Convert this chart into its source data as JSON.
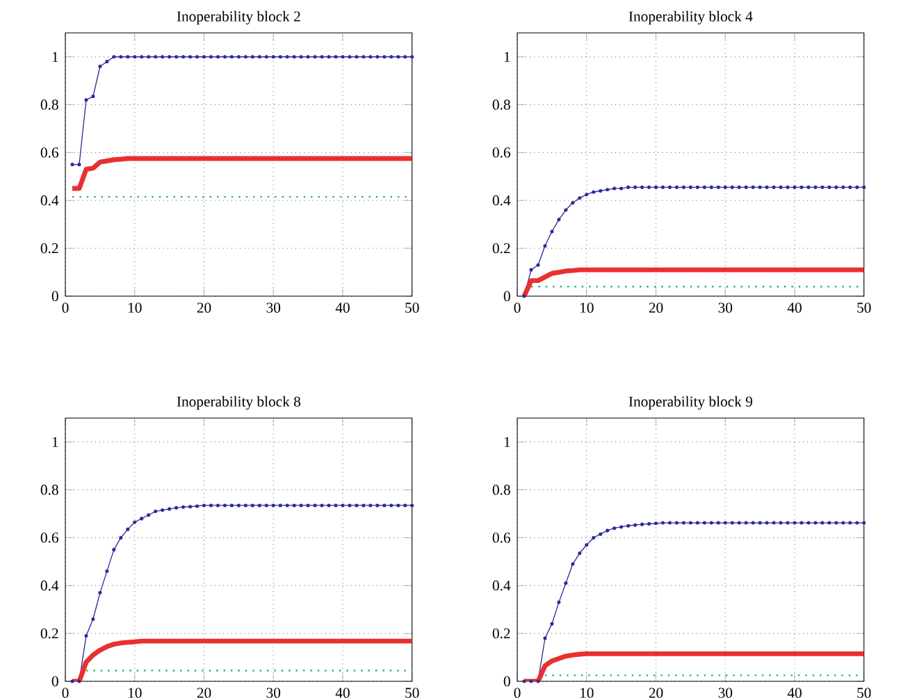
{
  "chart_data": [
    {
      "type": "line",
      "title": "Inoperability block 2",
      "xlim": [
        0,
        50
      ],
      "ylim": [
        0,
        1.1
      ],
      "xticks": [
        0,
        10,
        20,
        30,
        40,
        50
      ],
      "yticks": [
        0,
        0.2,
        0.4,
        0.6,
        0.8,
        1
      ],
      "grid": true,
      "x": [
        1,
        2,
        3,
        4,
        5,
        6,
        7,
        8,
        9,
        10,
        11,
        12,
        13,
        14,
        15,
        16,
        17,
        18,
        19,
        20,
        21,
        22,
        23,
        24,
        25,
        26,
        27,
        28,
        29,
        30,
        31,
        32,
        33,
        34,
        35,
        36,
        37,
        38,
        39,
        40,
        41,
        42,
        43,
        44,
        45,
        46,
        47,
        48,
        49,
        50
      ],
      "series": [
        {
          "color": "#2b2b9b",
          "marker": "circle",
          "line_style": "solid",
          "values": [
            0.55,
            0.55,
            0.82,
            0.835,
            0.96,
            0.98,
            1,
            1,
            1,
            1,
            1,
            1,
            1,
            1,
            1,
            1,
            1,
            1,
            1,
            1,
            1,
            1,
            1,
            1,
            1,
            1,
            1,
            1,
            1,
            1,
            1,
            1,
            1,
            1,
            1,
            1,
            1,
            1,
            1,
            1,
            1,
            1,
            1,
            1,
            1,
            1,
            1,
            1,
            1,
            1
          ]
        },
        {
          "color": "#e83030",
          "marker": "none",
          "line_style": "solid",
          "values": [
            0.45,
            0.45,
            0.53,
            0.535,
            0.56,
            0.565,
            0.57,
            0.572,
            0.575,
            0.575,
            0.575,
            0.575,
            0.575,
            0.575,
            0.575,
            0.575,
            0.575,
            0.575,
            0.575,
            0.575,
            0.575,
            0.575,
            0.575,
            0.575,
            0.575,
            0.575,
            0.575,
            0.575,
            0.575,
            0.575,
            0.575,
            0.575,
            0.575,
            0.575,
            0.575,
            0.575,
            0.575,
            0.575,
            0.575,
            0.575,
            0.575,
            0.575,
            0.575,
            0.575,
            0.575,
            0.575,
            0.575,
            0.575,
            0.575,
            0.575
          ]
        },
        {
          "color": "#22b070",
          "marker": "none",
          "line_style": "dotted",
          "values": [
            0.415,
            0.415,
            0.415,
            0.415,
            0.415,
            0.415,
            0.415,
            0.415,
            0.415,
            0.415,
            0.415,
            0.415,
            0.415,
            0.415,
            0.415,
            0.415,
            0.415,
            0.415,
            0.415,
            0.415,
            0.415,
            0.415,
            0.415,
            0.415,
            0.415,
            0.415,
            0.415,
            0.415,
            0.415,
            0.415,
            0.415,
            0.415,
            0.415,
            0.415,
            0.415,
            0.415,
            0.415,
            0.415,
            0.415,
            0.415,
            0.415,
            0.415,
            0.415,
            0.415,
            0.415,
            0.415,
            0.415,
            0.415,
            0.415,
            0.415
          ]
        }
      ]
    },
    {
      "type": "line",
      "title": "Inoperability block 4",
      "xlim": [
        0,
        50
      ],
      "ylim": [
        0,
        1.1
      ],
      "xticks": [
        0,
        10,
        20,
        30,
        40,
        50
      ],
      "yticks": [
        0,
        0.2,
        0.4,
        0.6,
        0.8,
        1
      ],
      "grid": true,
      "x": [
        1,
        2,
        3,
        4,
        5,
        6,
        7,
        8,
        9,
        10,
        11,
        12,
        13,
        14,
        15,
        16,
        17,
        18,
        19,
        20,
        21,
        22,
        23,
        24,
        25,
        26,
        27,
        28,
        29,
        30,
        31,
        32,
        33,
        34,
        35,
        36,
        37,
        38,
        39,
        40,
        41,
        42,
        43,
        44,
        45,
        46,
        47,
        48,
        49,
        50
      ],
      "series": [
        {
          "color": "#2b2b9b",
          "marker": "circle",
          "line_style": "solid",
          "values": [
            0,
            0.11,
            0.13,
            0.21,
            0.27,
            0.32,
            0.36,
            0.39,
            0.41,
            0.425,
            0.435,
            0.44,
            0.445,
            0.45,
            0.45,
            0.455,
            0.455,
            0.455,
            0.455,
            0.455,
            0.455,
            0.455,
            0.455,
            0.455,
            0.455,
            0.455,
            0.455,
            0.455,
            0.455,
            0.455,
            0.455,
            0.455,
            0.455,
            0.455,
            0.455,
            0.455,
            0.455,
            0.455,
            0.455,
            0.455,
            0.455,
            0.455,
            0.455,
            0.455,
            0.455,
            0.455,
            0.455,
            0.455,
            0.455,
            0.455
          ]
        },
        {
          "color": "#e83030",
          "marker": "none",
          "line_style": "solid",
          "values": [
            0,
            0.065,
            0.065,
            0.08,
            0.095,
            0.1,
            0.105,
            0.107,
            0.11,
            0.11,
            0.11,
            0.11,
            0.11,
            0.11,
            0.11,
            0.11,
            0.11,
            0.11,
            0.11,
            0.11,
            0.11,
            0.11,
            0.11,
            0.11,
            0.11,
            0.11,
            0.11,
            0.11,
            0.11,
            0.11,
            0.11,
            0.11,
            0.11,
            0.11,
            0.11,
            0.11,
            0.11,
            0.11,
            0.11,
            0.11,
            0.11,
            0.11,
            0.11,
            0.11,
            0.11,
            0.11,
            0.11,
            0.11,
            0.11,
            0.11
          ]
        },
        {
          "color": "#22b070",
          "marker": "none",
          "line_style": "dotted",
          "values": [
            null,
            0.04,
            0.04,
            0.04,
            0.04,
            0.04,
            0.04,
            0.04,
            0.04,
            0.04,
            0.04,
            0.04,
            0.04,
            0.04,
            0.04,
            0.04,
            0.04,
            0.04,
            0.04,
            0.04,
            0.04,
            0.04,
            0.04,
            0.04,
            0.04,
            0.04,
            0.04,
            0.04,
            0.04,
            0.04,
            0.04,
            0.04,
            0.04,
            0.04,
            0.04,
            0.04,
            0.04,
            0.04,
            0.04,
            0.04,
            0.04,
            0.04,
            0.04,
            0.04,
            0.04,
            0.04,
            0.04,
            0.04,
            0.04,
            0.04
          ]
        }
      ]
    },
    {
      "type": "line",
      "title": "Inoperability block 8",
      "xlim": [
        0,
        50
      ],
      "ylim": [
        0,
        1.1
      ],
      "xticks": [
        0,
        10,
        20,
        30,
        40,
        50
      ],
      "yticks": [
        0,
        0.2,
        0.4,
        0.6,
        0.8,
        1
      ],
      "grid": true,
      "x": [
        1,
        2,
        3,
        4,
        5,
        6,
        7,
        8,
        9,
        10,
        11,
        12,
        13,
        14,
        15,
        16,
        17,
        18,
        19,
        20,
        21,
        22,
        23,
        24,
        25,
        26,
        27,
        28,
        29,
        30,
        31,
        32,
        33,
        34,
        35,
        36,
        37,
        38,
        39,
        40,
        41,
        42,
        43,
        44,
        45,
        46,
        47,
        48,
        49,
        50
      ],
      "series": [
        {
          "color": "#2b2b9b",
          "marker": "circle",
          "line_style": "solid",
          "values": [
            0,
            0,
            0.19,
            0.26,
            0.37,
            0.46,
            0.55,
            0.6,
            0.635,
            0.665,
            0.68,
            0.695,
            0.71,
            0.715,
            0.72,
            0.725,
            0.728,
            0.73,
            0.732,
            0.735,
            0.735,
            0.735,
            0.735,
            0.735,
            0.735,
            0.735,
            0.735,
            0.735,
            0.735,
            0.735,
            0.735,
            0.735,
            0.735,
            0.735,
            0.735,
            0.735,
            0.735,
            0.735,
            0.735,
            0.735,
            0.735,
            0.735,
            0.735,
            0.735,
            0.735,
            0.735,
            0.735,
            0.735,
            0.735,
            0.735
          ]
        },
        {
          "color": "#e83030",
          "marker": "none",
          "line_style": "solid",
          "values": [
            0,
            0,
            0.08,
            0.11,
            0.13,
            0.145,
            0.155,
            0.16,
            0.163,
            0.165,
            0.168,
            0.168,
            0.168,
            0.168,
            0.168,
            0.168,
            0.168,
            0.168,
            0.168,
            0.168,
            0.168,
            0.168,
            0.168,
            0.168,
            0.168,
            0.168,
            0.168,
            0.168,
            0.168,
            0.168,
            0.168,
            0.168,
            0.168,
            0.168,
            0.168,
            0.168,
            0.168,
            0.168,
            0.168,
            0.168,
            0.168,
            0.168,
            0.168,
            0.168,
            0.168,
            0.168,
            0.168,
            0.168,
            0.168,
            0.168
          ]
        },
        {
          "color": "#22b070",
          "marker": "none",
          "line_style": "dotted",
          "values": [
            null,
            null,
            0.045,
            0.045,
            0.045,
            0.045,
            0.045,
            0.045,
            0.045,
            0.045,
            0.045,
            0.045,
            0.045,
            0.045,
            0.045,
            0.045,
            0.045,
            0.045,
            0.045,
            0.045,
            0.045,
            0.045,
            0.045,
            0.045,
            0.045,
            0.045,
            0.045,
            0.045,
            0.045,
            0.045,
            0.045,
            0.045,
            0.045,
            0.045,
            0.045,
            0.045,
            0.045,
            0.045,
            0.045,
            0.045,
            0.045,
            0.045,
            0.045,
            0.045,
            0.045,
            0.045,
            0.045,
            0.045,
            0.045,
            0.045
          ]
        }
      ]
    },
    {
      "type": "line",
      "title": "Inoperability block 9",
      "xlim": [
        0,
        50
      ],
      "ylim": [
        0,
        1.1
      ],
      "xticks": [
        0,
        10,
        20,
        30,
        40,
        50
      ],
      "yticks": [
        0,
        0.2,
        0.4,
        0.6,
        0.8,
        1
      ],
      "grid": true,
      "x": [
        1,
        2,
        3,
        4,
        5,
        6,
        7,
        8,
        9,
        10,
        11,
        12,
        13,
        14,
        15,
        16,
        17,
        18,
        19,
        20,
        21,
        22,
        23,
        24,
        25,
        26,
        27,
        28,
        29,
        30,
        31,
        32,
        33,
        34,
        35,
        36,
        37,
        38,
        39,
        40,
        41,
        42,
        43,
        44,
        45,
        46,
        47,
        48,
        49,
        50
      ],
      "series": [
        {
          "color": "#2b2b9b",
          "marker": "circle",
          "line_style": "solid",
          "values": [
            0,
            0,
            0,
            0.18,
            0.24,
            0.33,
            0.41,
            0.49,
            0.535,
            0.57,
            0.6,
            0.615,
            0.63,
            0.64,
            0.645,
            0.65,
            0.653,
            0.656,
            0.658,
            0.66,
            0.662,
            0.662,
            0.662,
            0.662,
            0.662,
            0.662,
            0.662,
            0.662,
            0.662,
            0.662,
            0.662,
            0.662,
            0.662,
            0.662,
            0.662,
            0.662,
            0.662,
            0.662,
            0.662,
            0.662,
            0.662,
            0.662,
            0.662,
            0.662,
            0.662,
            0.662,
            0.662,
            0.662,
            0.662,
            0.662
          ]
        },
        {
          "color": "#e83030",
          "marker": "none",
          "line_style": "solid",
          "values": [
            0,
            0,
            0,
            0.065,
            0.085,
            0.095,
            0.105,
            0.11,
            0.113,
            0.115,
            0.115,
            0.115,
            0.115,
            0.115,
            0.115,
            0.115,
            0.115,
            0.115,
            0.115,
            0.115,
            0.115,
            0.115,
            0.115,
            0.115,
            0.115,
            0.115,
            0.115,
            0.115,
            0.115,
            0.115,
            0.115,
            0.115,
            0.115,
            0.115,
            0.115,
            0.115,
            0.115,
            0.115,
            0.115,
            0.115,
            0.115,
            0.115,
            0.115,
            0.115,
            0.115,
            0.115,
            0.115,
            0.115,
            0.115,
            0.115
          ]
        },
        {
          "color": "#22b070",
          "marker": "none",
          "line_style": "dotted",
          "values": [
            null,
            null,
            null,
            0.025,
            0.025,
            0.025,
            0.025,
            0.025,
            0.025,
            0.025,
            0.025,
            0.025,
            0.025,
            0.025,
            0.025,
            0.025,
            0.025,
            0.025,
            0.025,
            0.025,
            0.025,
            0.025,
            0.025,
            0.025,
            0.025,
            0.025,
            0.025,
            0.025,
            0.025,
            0.025,
            0.025,
            0.025,
            0.025,
            0.025,
            0.025,
            0.025,
            0.025,
            0.025,
            0.025,
            0.025,
            0.025,
            0.025,
            0.025,
            0.025,
            0.025,
            0.025,
            0.025,
            0.025,
            0.025,
            0.025
          ]
        }
      ]
    }
  ]
}
